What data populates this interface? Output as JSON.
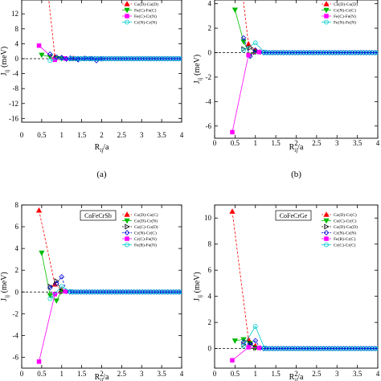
{
  "chart_data": [
    {
      "type": "line",
      "title": "",
      "panel_label": "(a)",
      "ylabel_main": "J",
      "ylabel_sub": "ij",
      "ylabel_unit": " (meV)",
      "xlabel_main": "R",
      "xlabel_sub": "ij",
      "xlabel_unit": "/a",
      "xlim": [
        0,
        4
      ],
      "ylim": [
        -17,
        17
      ],
      "xticks": [
        "0",
        "0.5",
        "1",
        "1.5",
        "2",
        "2.5",
        "3",
        "3.5",
        "4"
      ],
      "yticks": [
        {
          "v": -16,
          "t": "-16"
        },
        {
          "v": -12,
          "t": "-12"
        },
        {
          "v": -8,
          "t": "-8"
        },
        {
          "v": -4,
          "t": "-4"
        },
        {
          "v": 0,
          "t": "0"
        },
        {
          "v": 4,
          "t": "4"
        },
        {
          "v": 8,
          "t": "8"
        },
        {
          "v": 12,
          "t": "12"
        },
        {
          "v": 16,
          "t": "16"
        }
      ],
      "series": [
        {
          "name": "Co(D)-Co(D)",
          "color": "#ff0000",
          "marker": "triangle",
          "dashed": true,
          "x": [
            0.433,
            0.83,
            1.0,
            1.3
          ],
          "y": [
            40.0,
            0.5,
            0.2,
            0.05
          ]
        },
        {
          "name": "Fe(C)-Fe(C)",
          "color": "#00bb00",
          "marker": "triangle-down",
          "dashed": false,
          "x": [
            0.5,
            0.71,
            0.87,
            1.0
          ],
          "y": [
            1.0,
            0.5,
            0.1,
            0.05
          ]
        },
        {
          "name": "Fe(C)-Cr(N)",
          "color": "#ff00ff",
          "marker": "square",
          "dashed": false,
          "x": [
            0.433,
            0.83,
            1.09
          ],
          "y": [
            3.5,
            -0.3,
            0.05
          ]
        },
        {
          "name": "Cr(N)-Cr(N)",
          "color": "#00cccc",
          "marker": "circle",
          "dashed": false,
          "x": [
            0.71,
            1.0,
            1.22,
            1.41
          ],
          "y": [
            -0.5,
            0.1,
            0.05,
            0.02
          ]
        },
        {
          "name": "",
          "color": "#0000dd",
          "marker": "diamond",
          "dashed": true,
          "x": [
            0.71,
            0.87,
            1.0,
            1.12,
            1.22,
            1.41,
            1.58,
            1.73,
            1.87,
            2.0
          ],
          "y": [
            1.2,
            0.4,
            0.3,
            -0.1,
            0.15,
            -0.3,
            0.1,
            0.02,
            -0.5,
            -0.02
          ]
        }
      ]
    },
    {
      "type": "line",
      "title": "",
      "panel_label": "(b)",
      "ylabel_main": "J",
      "ylabel_sub": "ij",
      "ylabel_unit": " (meV)",
      "xlabel_main": "R",
      "xlabel_sub": "ij",
      "xlabel_unit": "/a",
      "xlim": [
        0,
        4
      ],
      "ylim": [
        -7,
        4.7
      ],
      "xticks": [
        "0",
        "0.5",
        "1",
        "1.5",
        "2",
        "2.5",
        "3",
        "3.5",
        "4"
      ],
      "yticks": [
        {
          "v": -6,
          "t": "-6"
        },
        {
          "v": -4,
          "t": "-4"
        },
        {
          "v": -2,
          "t": "-2"
        },
        {
          "v": 0,
          "t": "0"
        },
        {
          "v": 2,
          "t": "2"
        },
        {
          "v": 4,
          "t": "4"
        }
      ],
      "series": [
        {
          "name": "Co(D)-Co(D)",
          "color": "#ff0000",
          "marker": "triangle",
          "dashed": true,
          "x": [
            0.433,
            0.83,
            1.0
          ],
          "y": [
            12.0,
            0.7,
            0.2
          ]
        },
        {
          "name": "Cr(N)-Cr(C)",
          "color": "#00bb00",
          "marker": "triangle-down",
          "dashed": false,
          "x": [
            0.5,
            0.71,
            0.87,
            1.0
          ],
          "y": [
            3.5,
            0.9,
            -0.2,
            0.05
          ]
        },
        {
          "name": "",
          "color": "#000000",
          "marker": "triangle-right",
          "dashed": true,
          "x": [
            0.71,
            0.87,
            1.0
          ],
          "y": [
            0.3,
            0.4,
            0.05
          ]
        },
        {
          "name": "",
          "color": "#0000dd",
          "marker": "diamond",
          "dashed": true,
          "x": [
            0.71,
            0.87,
            1.0,
            1.12
          ],
          "y": [
            1.2,
            -0.3,
            0.2,
            0.05
          ]
        },
        {
          "name": "Fe(C)-Fe(N)",
          "color": "#ff00ff",
          "marker": "square",
          "dashed": false,
          "x": [
            0.433,
            0.83,
            1.09
          ],
          "y": [
            -6.5,
            -0.2,
            0.05
          ]
        },
        {
          "name": "Fe(N)-Fe(N)",
          "color": "#00cccc",
          "marker": "circle",
          "dashed": false,
          "x": [
            0.71,
            1.0,
            1.22
          ],
          "y": [
            0.2,
            0.8,
            0.05
          ]
        }
      ]
    },
    {
      "type": "line",
      "title": "",
      "panel_label": "",
      "box_label": "CoFeCrSb",
      "ylabel_main": "J",
      "ylabel_sub": "ij",
      "ylabel_unit": " (meV)",
      "xlabel_main": "R",
      "xlabel_sub": "ij",
      "xlabel_unit": "/a",
      "xlim": [
        0,
        4
      ],
      "ylim": [
        -7,
        8
      ],
      "xticks": [
        "0",
        "0.5",
        "1",
        "1.5",
        "2",
        "2.5",
        "3",
        "3.5",
        "4"
      ],
      "yticks": [
        {
          "v": -6,
          "t": "-6"
        },
        {
          "v": -4,
          "t": "-4"
        },
        {
          "v": -2,
          "t": "-2"
        },
        {
          "v": 0,
          "t": "0"
        },
        {
          "v": 2,
          "t": "2"
        },
        {
          "v": 4,
          "t": "4"
        },
        {
          "v": 6,
          "t": "6"
        },
        {
          "v": 8,
          "t": "8"
        }
      ],
      "series": [
        {
          "name": "Co(D)-Co(C)",
          "color": "#ff0000",
          "marker": "triangle",
          "dashed": true,
          "x": [
            0.433,
            0.83,
            1.0
          ],
          "y": [
            7.5,
            0.7,
            0.2
          ]
        },
        {
          "name": "Co(D)-Cr(N)",
          "color": "#00bb00",
          "marker": "triangle-down",
          "dashed": false,
          "x": [
            0.5,
            0.71,
            0.87,
            1.0
          ],
          "y": [
            3.6,
            -0.3,
            -0.8,
            0.05
          ]
        },
        {
          "name": "Co(C)-Co(D)",
          "color": "#000000",
          "marker": "triangle-right",
          "dashed": true,
          "x": [
            0.71,
            0.87,
            1.0
          ],
          "y": [
            0.5,
            1.0,
            0.05
          ]
        },
        {
          "name": "Cr(N)-Cr(C)",
          "color": "#0000dd",
          "marker": "diamond",
          "dashed": true,
          "x": [
            0.71,
            0.87,
            1.0,
            1.12
          ],
          "y": [
            0.4,
            0.8,
            1.4,
            0.05
          ]
        },
        {
          "name": "Cr(C)-Fe(N)",
          "color": "#ff00ff",
          "marker": "square",
          "dashed": false,
          "x": [
            0.433,
            0.83,
            1.09
          ],
          "y": [
            -6.4,
            -0.2,
            0.05
          ]
        },
        {
          "name": "Fe(B)-Fe(N)",
          "color": "#00cccc",
          "marker": "circle",
          "dashed": false,
          "x": [
            0.71,
            1.0,
            1.22
          ],
          "y": [
            -0.6,
            0.5,
            0.05
          ]
        }
      ]
    },
    {
      "type": "line",
      "title": "",
      "panel_label": "",
      "box_label": "CoFeCrGe",
      "ylabel_main": "J",
      "ylabel_sub": "ij",
      "ylabel_unit": " (meV)",
      "xlabel_main": "R",
      "xlabel_sub": "ij",
      "xlabel_unit": "/a",
      "xlim": [
        0,
        4
      ],
      "ylim": [
        -1.5,
        11
      ],
      "xticks": [
        "0",
        "0.5",
        "1",
        "1.5",
        "2",
        "2.5",
        "3",
        "3.5",
        "4"
      ],
      "yticks": [
        {
          "v": 0,
          "t": "0"
        },
        {
          "v": 2,
          "t": "2"
        },
        {
          "v": 4,
          "t": "4"
        },
        {
          "v": 6,
          "t": "6"
        },
        {
          "v": 8,
          "t": "8"
        },
        {
          "v": 10,
          "t": "10"
        }
      ],
      "series": [
        {
          "name": "Co(D)-Cr(C)",
          "color": "#ff0000",
          "marker": "triangle",
          "dashed": true,
          "x": [
            0.433,
            0.83,
            1.0
          ],
          "y": [
            10.5,
            0.7,
            0.2
          ]
        },
        {
          "name": "Co(C)-Cr(C)",
          "color": "#00bb00",
          "marker": "triangle-down",
          "dashed": false,
          "x": [
            0.5,
            0.71,
            0.87,
            1.0
          ],
          "y": [
            0.6,
            0.7,
            0.4,
            0.05
          ]
        },
        {
          "name": "Co(D)-Co(D)",
          "color": "#000000",
          "marker": "triangle-right",
          "dashed": true,
          "x": [
            0.71,
            0.87,
            1.0
          ],
          "y": [
            0.3,
            0.4,
            0.05
          ]
        },
        {
          "name": "Cr(N)-Cr(N)",
          "color": "#0000dd",
          "marker": "diamond",
          "dashed": true,
          "x": [
            0.71,
            0.87,
            1.0,
            1.12
          ],
          "y": [
            0.5,
            0.3,
            0.6,
            0.05
          ]
        },
        {
          "name": "Fe(B)-Cr(C)",
          "color": "#ff00ff",
          "marker": "square",
          "dashed": false,
          "x": [
            0.433,
            0.83,
            1.09
          ],
          "y": [
            -0.9,
            0.1,
            0.05
          ]
        },
        {
          "name": "Cr(C)-Cr(C)",
          "color": "#00cccc",
          "marker": "circle",
          "dashed": false,
          "x": [
            0.71,
            1.0,
            1.22
          ],
          "y": [
            0.2,
            1.7,
            0.05
          ]
        }
      ]
    }
  ]
}
